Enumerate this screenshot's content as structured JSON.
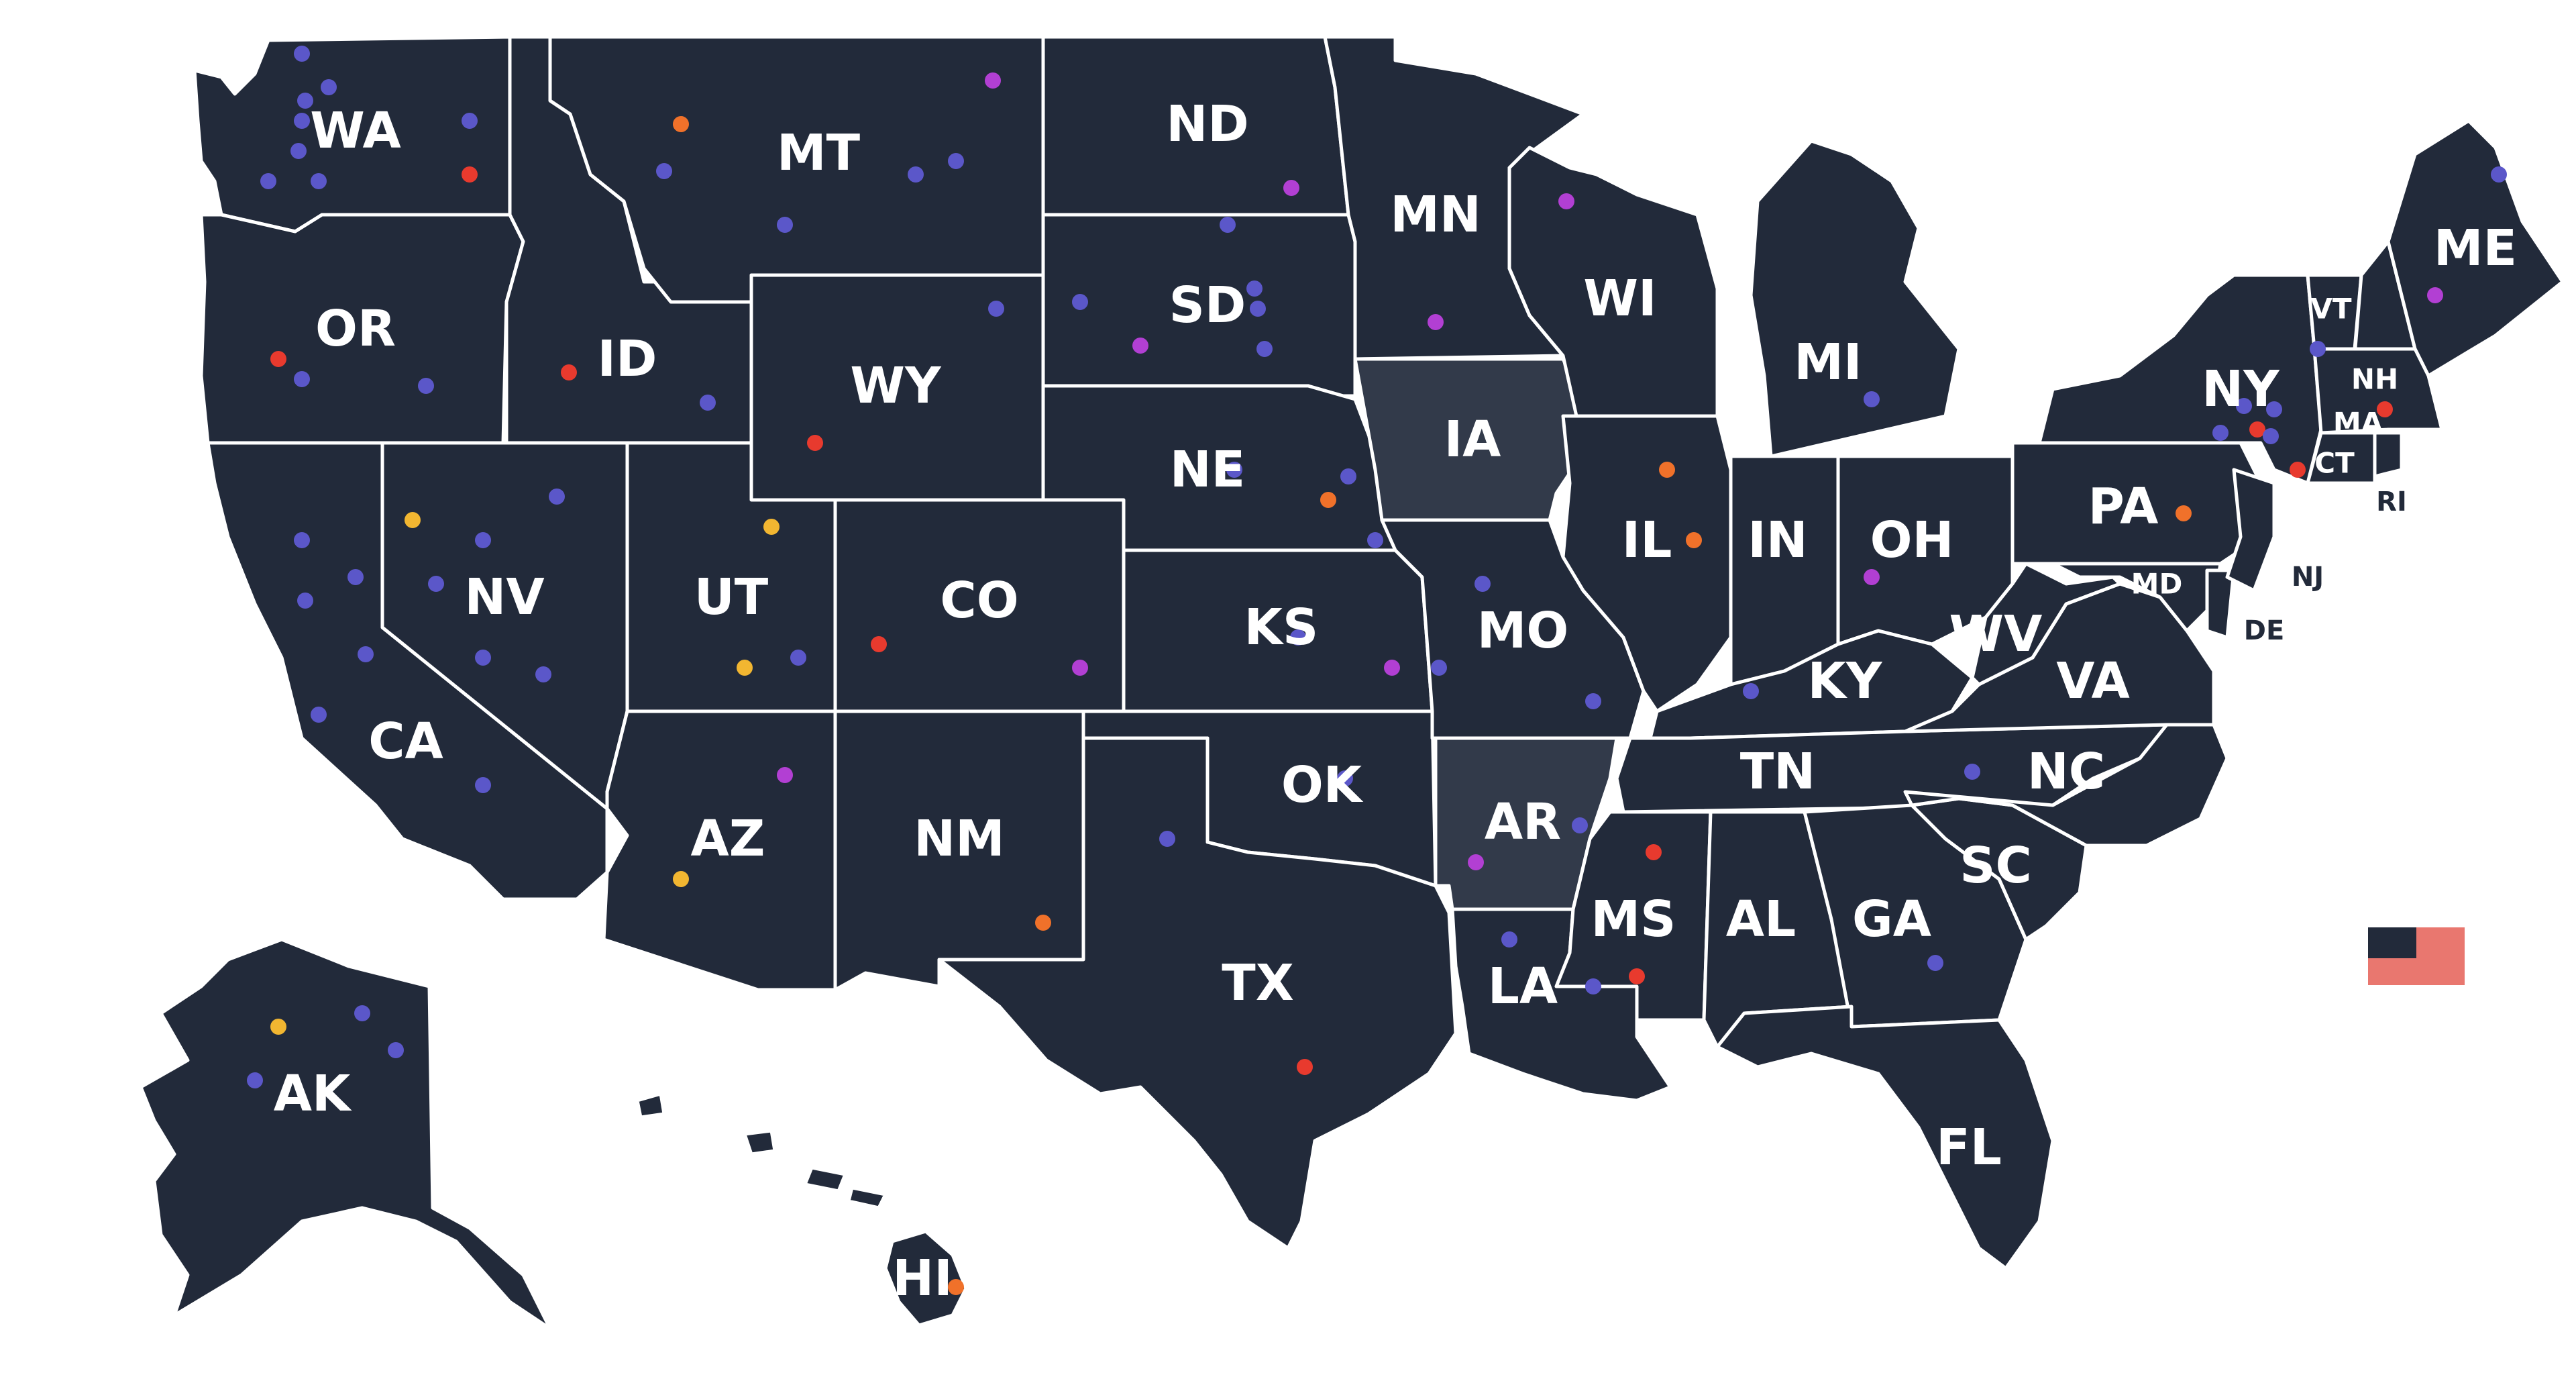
{
  "map": {
    "background_color": "#ffffff",
    "state_fill": "#222a3a",
    "highlight_fill": "#323a4a",
    "border_color": "#ffffff",
    "states": [
      {
        "abbr": "WA",
        "highlighted": false
      },
      {
        "abbr": "OR",
        "highlighted": false
      },
      {
        "abbr": "CA",
        "highlighted": false
      },
      {
        "abbr": "NV",
        "highlighted": false
      },
      {
        "abbr": "ID",
        "highlighted": false
      },
      {
        "abbr": "MT",
        "highlighted": false
      },
      {
        "abbr": "WY",
        "highlighted": false
      },
      {
        "abbr": "UT",
        "highlighted": false
      },
      {
        "abbr": "AZ",
        "highlighted": false
      },
      {
        "abbr": "CO",
        "highlighted": false
      },
      {
        "abbr": "NM",
        "highlighted": false
      },
      {
        "abbr": "ND",
        "highlighted": false
      },
      {
        "abbr": "SD",
        "highlighted": false
      },
      {
        "abbr": "NE",
        "highlighted": false
      },
      {
        "abbr": "KS",
        "highlighted": false
      },
      {
        "abbr": "OK",
        "highlighted": false
      },
      {
        "abbr": "TX",
        "highlighted": false
      },
      {
        "abbr": "MN",
        "highlighted": false
      },
      {
        "abbr": "IA",
        "highlighted": true
      },
      {
        "abbr": "MO",
        "highlighted": false
      },
      {
        "abbr": "AR",
        "highlighted": true
      },
      {
        "abbr": "LA",
        "highlighted": false
      },
      {
        "abbr": "WI",
        "highlighted": false
      },
      {
        "abbr": "IL",
        "highlighted": false
      },
      {
        "abbr": "MI",
        "highlighted": false
      },
      {
        "abbr": "IN",
        "highlighted": false
      },
      {
        "abbr": "OH",
        "highlighted": false
      },
      {
        "abbr": "KY",
        "highlighted": false
      },
      {
        "abbr": "TN",
        "highlighted": false
      },
      {
        "abbr": "MS",
        "highlighted": false
      },
      {
        "abbr": "AL",
        "highlighted": false
      },
      {
        "abbr": "GA",
        "highlighted": false
      },
      {
        "abbr": "FL",
        "highlighted": false
      },
      {
        "abbr": "SC",
        "highlighted": false
      },
      {
        "abbr": "NC",
        "highlighted": false
      },
      {
        "abbr": "VA",
        "highlighted": false
      },
      {
        "abbr": "WV",
        "highlighted": false
      },
      {
        "abbr": "PA",
        "highlighted": false
      },
      {
        "abbr": "NY",
        "highlighted": false
      },
      {
        "abbr": "VT",
        "highlighted": false
      },
      {
        "abbr": "NH",
        "highlighted": false
      },
      {
        "abbr": "ME",
        "highlighted": false
      },
      {
        "abbr": "MA",
        "highlighted": false
      },
      {
        "abbr": "CT",
        "highlighted": false
      },
      {
        "abbr": "RI",
        "highlighted": false
      },
      {
        "abbr": "NJ",
        "highlighted": false
      },
      {
        "abbr": "DE",
        "highlighted": false
      },
      {
        "abbr": "MD",
        "highlighted": false
      },
      {
        "abbr": "AK",
        "highlighted": false
      },
      {
        "abbr": "HI",
        "highlighted": false
      }
    ],
    "marker_colors": {
      "blue": "#5b57c9",
      "purple": "#b23fd3",
      "red": "#e83a2e",
      "orange": "#f0712a",
      "yellow": "#f2b631"
    },
    "markers": [
      {
        "state": "WA",
        "color": "blue"
      },
      {
        "state": "WA",
        "color": "blue"
      },
      {
        "state": "WA",
        "color": "blue"
      },
      {
        "state": "WA",
        "color": "blue"
      },
      {
        "state": "WA",
        "color": "blue"
      },
      {
        "state": "WA",
        "color": "blue"
      },
      {
        "state": "WA",
        "color": "blue"
      },
      {
        "state": "WA",
        "color": "blue"
      },
      {
        "state": "WA",
        "color": "red"
      },
      {
        "state": "OR",
        "color": "red"
      },
      {
        "state": "OR",
        "color": "blue"
      },
      {
        "state": "OR",
        "color": "blue"
      },
      {
        "state": "ID",
        "color": "red"
      },
      {
        "state": "ID",
        "color": "blue"
      },
      {
        "state": "MT",
        "color": "purple"
      },
      {
        "state": "MT",
        "color": "orange"
      },
      {
        "state": "MT",
        "color": "blue"
      },
      {
        "state": "MT",
        "color": "blue"
      },
      {
        "state": "MT",
        "color": "blue"
      },
      {
        "state": "MT",
        "color": "blue"
      },
      {
        "state": "WY",
        "color": "blue"
      },
      {
        "state": "WY",
        "color": "red"
      },
      {
        "state": "ND",
        "color": "purple"
      },
      {
        "state": "SD",
        "color": "blue"
      },
      {
        "state": "SD",
        "color": "blue"
      },
      {
        "state": "SD",
        "color": "purple"
      },
      {
        "state": "SD",
        "color": "blue"
      },
      {
        "state": "SD",
        "color": "blue"
      },
      {
        "state": "SD",
        "color": "blue"
      },
      {
        "state": "NE",
        "color": "blue"
      },
      {
        "state": "NE",
        "color": "blue"
      },
      {
        "state": "NE",
        "color": "orange"
      },
      {
        "state": "NE",
        "color": "blue"
      },
      {
        "state": "CA",
        "color": "blue"
      },
      {
        "state": "CA",
        "color": "blue"
      },
      {
        "state": "CA",
        "color": "blue"
      },
      {
        "state": "CA",
        "color": "blue"
      },
      {
        "state": "CA",
        "color": "blue"
      },
      {
        "state": "CA",
        "color": "blue"
      },
      {
        "state": "NV",
        "color": "yellow"
      },
      {
        "state": "NV",
        "color": "blue"
      },
      {
        "state": "NV",
        "color": "blue"
      },
      {
        "state": "NV",
        "color": "blue"
      },
      {
        "state": "NV",
        "color": "blue"
      },
      {
        "state": "NV",
        "color": "blue"
      },
      {
        "state": "UT",
        "color": "yellow"
      },
      {
        "state": "UT",
        "color": "yellow"
      },
      {
        "state": "UT",
        "color": "blue"
      },
      {
        "state": "CO",
        "color": "red"
      },
      {
        "state": "CO",
        "color": "purple"
      },
      {
        "state": "AZ",
        "color": "purple"
      },
      {
        "state": "AZ",
        "color": "yellow"
      },
      {
        "state": "NM",
        "color": "orange"
      },
      {
        "state": "KS",
        "color": "blue"
      },
      {
        "state": "KS",
        "color": "purple"
      },
      {
        "state": "KS",
        "color": "blue"
      },
      {
        "state": "OK",
        "color": "blue"
      },
      {
        "state": "TX",
        "color": "blue"
      },
      {
        "state": "TX",
        "color": "red"
      },
      {
        "state": "MN",
        "color": "purple"
      },
      {
        "state": "WI",
        "color": "purple"
      },
      {
        "state": "MO",
        "color": "blue"
      },
      {
        "state": "MO",
        "color": "blue"
      },
      {
        "state": "AR",
        "color": "purple"
      },
      {
        "state": "AR",
        "color": "blue"
      },
      {
        "state": "LA",
        "color": "blue"
      },
      {
        "state": "IL",
        "color": "orange"
      },
      {
        "state": "IL",
        "color": "orange"
      },
      {
        "state": "MI",
        "color": "blue"
      },
      {
        "state": "OH",
        "color": "purple"
      },
      {
        "state": "KY",
        "color": "blue"
      },
      {
        "state": "MS",
        "color": "red"
      },
      {
        "state": "MS",
        "color": "red"
      },
      {
        "state": "MS",
        "color": "blue"
      },
      {
        "state": "GA",
        "color": "blue"
      },
      {
        "state": "NC",
        "color": "blue"
      },
      {
        "state": "PA",
        "color": "orange"
      },
      {
        "state": "NY",
        "color": "blue"
      },
      {
        "state": "NY",
        "color": "blue"
      },
      {
        "state": "NY",
        "color": "red"
      },
      {
        "state": "NY",
        "color": "blue"
      },
      {
        "state": "NY",
        "color": "blue"
      },
      {
        "state": "NY",
        "color": "red"
      },
      {
        "state": "VT",
        "color": "blue"
      },
      {
        "state": "ME",
        "color": "blue"
      },
      {
        "state": "ME",
        "color": "purple"
      },
      {
        "state": "MA",
        "color": "red"
      },
      {
        "state": "AK",
        "color": "yellow"
      },
      {
        "state": "AK",
        "color": "blue"
      },
      {
        "state": "AK",
        "color": "blue"
      },
      {
        "state": "AK",
        "color": "blue"
      },
      {
        "state": "HI",
        "color": "orange"
      }
    ],
    "legend_swatch": {
      "colors": [
        "#222a3a",
        "#e9776f"
      ]
    }
  }
}
